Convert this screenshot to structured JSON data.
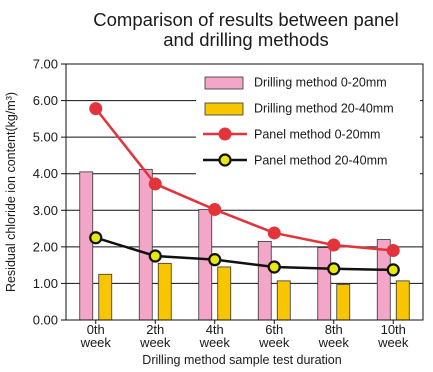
{
  "chart_data": {
    "type": "bar",
    "title_lines": [
      "Comparison of results between panel",
      "and drilling methods"
    ],
    "xlabel": "Drilling method sample test duration",
    "ylabel": "Residual chloride ion content(kg/m³)",
    "ylim": [
      0,
      7
    ],
    "yticks": [
      "0.00",
      "1.00",
      "2.00",
      "3.00",
      "4.00",
      "5.00",
      "6.00",
      "7.00"
    ],
    "categories": [
      [
        "0th",
        "week"
      ],
      [
        "2th",
        "week"
      ],
      [
        "4th",
        "week"
      ],
      [
        "6th",
        "week"
      ],
      [
        "8th",
        "week"
      ],
      [
        "10th",
        "week"
      ]
    ],
    "series": [
      {
        "name": "Drilling method 0-20mm",
        "type": "bar",
        "color": "#f4a6c8",
        "values": [
          4.05,
          4.12,
          3.02,
          2.15,
          1.98,
          2.2
        ]
      },
      {
        "name": "Drilling method 20-40mm",
        "type": "bar",
        "color": "#f7c600",
        "values": [
          1.25,
          1.55,
          1.45,
          1.07,
          0.97,
          1.07
        ]
      },
      {
        "name": "Panel method 0-20mm",
        "type": "line",
        "color": "#e3343b",
        "values": [
          5.78,
          3.72,
          3.02,
          2.38,
          2.05,
          1.9
        ]
      },
      {
        "name": "Panel method 20-40mm",
        "type": "line",
        "color": "#111111",
        "marker_fill": "#e8e80c",
        "values": [
          2.25,
          1.75,
          1.65,
          1.45,
          1.4,
          1.37
        ]
      }
    ],
    "grid": true,
    "legend_position": "top-right"
  }
}
